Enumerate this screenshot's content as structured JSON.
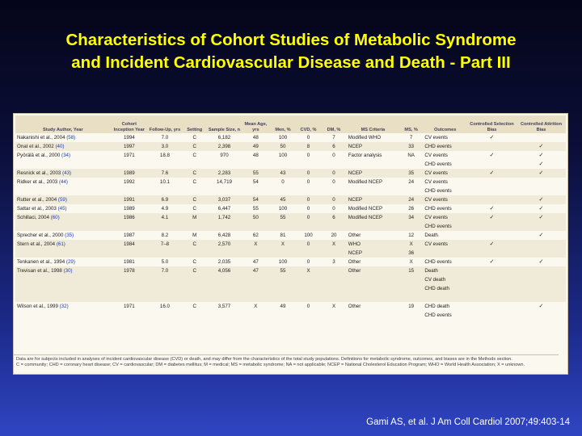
{
  "title_line1": "Characteristics of Cohort Studies of Metabolic Syndrome",
  "title_line2": "and Incident Cardiovascular Disease and Death - Part III",
  "headers": [
    "Study Author, Year",
    "Cohort Inception Year",
    "Follow-Up, yrs",
    "Setting",
    "Sample Size, n",
    "Mean Age, yrs",
    "Men, %",
    "CVD, %",
    "DM, %",
    "MS Criteria",
    "MS, %",
    "Outcomes",
    "Controlled Selection Bias",
    "Controlled Attrition Bias"
  ],
  "rows": [
    {
      "study": "Nakanishi et al., 2004",
      "ref": "(58)",
      "year": "1994",
      "fu": "7.0",
      "set": "C",
      "n": "6,182",
      "age": "48",
      "men": "100",
      "cvd": "0",
      "dm": "7",
      "crit": "Modified WHO",
      "ms": "7",
      "out": "CV events",
      "sel": "✓",
      "att": ""
    },
    {
      "study": "Onat et al., 2002",
      "ref": "(40)",
      "year": "1997",
      "fu": "3.0",
      "set": "C",
      "n": "2,398",
      "age": "49",
      "men": "50",
      "cvd": "8",
      "dm": "6",
      "crit": "NCEP",
      "ms": "33",
      "out": "CHD events",
      "sel": "",
      "att": "✓"
    },
    {
      "study": "Pyörälä et al., 2000",
      "ref": "(34)",
      "year": "1971",
      "fu": "18.8",
      "set": "C",
      "n": "970",
      "age": "48",
      "men": "100",
      "cvd": "0",
      "dm": "0",
      "crit": "Factor analysis",
      "ms": "NA",
      "out": "CV events",
      "sel": "✓",
      "att": "✓"
    },
    {
      "study": "",
      "ref": "",
      "year": "",
      "fu": "",
      "set": "",
      "n": "",
      "age": "",
      "men": "",
      "cvd": "",
      "dm": "",
      "crit": "",
      "ms": "",
      "out": "CHD events",
      "sel": "",
      "att": "✓"
    },
    {
      "study": "Resnick et al., 2003",
      "ref": "(43)",
      "year": "1989",
      "fu": "7.6",
      "set": "C",
      "n": "2,283",
      "age": "55",
      "men": "43",
      "cvd": "0",
      "dm": "0",
      "crit": "NCEP",
      "ms": "35",
      "out": "CV events",
      "sel": "✓",
      "att": "✓"
    },
    {
      "study": "Ridker et al., 2003",
      "ref": "(44)",
      "year": "1992",
      "fu": "10.1",
      "set": "C",
      "n": "14,719",
      "age": "54",
      "men": "0",
      "cvd": "0",
      "dm": "0",
      "crit": "Modified NCEP",
      "ms": "24",
      "out": "CV events",
      "sel": "",
      "att": ""
    },
    {
      "study": "",
      "ref": "",
      "year": "",
      "fu": "",
      "set": "",
      "n": "",
      "age": "",
      "men": "",
      "cvd": "",
      "dm": "",
      "crit": "",
      "ms": "",
      "out": "CHD events",
      "sel": "",
      "att": ""
    },
    {
      "study": "Rutter et al., 2004",
      "ref": "(59)",
      "year": "1991",
      "fu": "6.9",
      "set": "C",
      "n": "3,037",
      "age": "54",
      "men": "45",
      "cvd": "0",
      "dm": "0",
      "crit": "NCEP",
      "ms": "24",
      "out": "CV events",
      "sel": "",
      "att": "✓"
    },
    {
      "study": "Sattar et al., 2003",
      "ref": "(45)",
      "year": "1989",
      "fu": "4.9",
      "set": "C",
      "n": "6,447",
      "age": "55",
      "men": "100",
      "cvd": "0",
      "dm": "0",
      "crit": "Modified NCEP",
      "ms": "26",
      "out": "CHD events",
      "sel": "✓",
      "att": "✓"
    },
    {
      "study": "Schillaci, 2004",
      "ref": "(60)",
      "year": "1986",
      "fu": "4.1",
      "set": "M",
      "n": "1,742",
      "age": "50",
      "men": "55",
      "cvd": "0",
      "dm": "6",
      "crit": "Modified NCEP",
      "ms": "34",
      "out": "CV events",
      "sel": "✓",
      "att": "✓"
    },
    {
      "study": "",
      "ref": "",
      "year": "",
      "fu": "",
      "set": "",
      "n": "",
      "age": "",
      "men": "",
      "cvd": "",
      "dm": "",
      "crit": "",
      "ms": "",
      "out": "CHD events",
      "sel": "",
      "att": ""
    },
    {
      "study": "Sprecher et al., 2000",
      "ref": "(35)",
      "year": "1987",
      "fu": "8.2",
      "set": "M",
      "n": "6,428",
      "age": "62",
      "men": "81",
      "cvd": "100",
      "dm": "20",
      "crit": "Other",
      "ms": "12",
      "out": "Death",
      "sel": "",
      "att": "✓"
    },
    {
      "study": "Stern et al., 2004",
      "ref": "(61)",
      "year": "1984",
      "fu": "7–8",
      "set": "C",
      "n": "2,570",
      "age": "X",
      "men": "X",
      "cvd": "0",
      "dm": "X",
      "crit": "WHO",
      "ms": "X",
      "out": "CV events",
      "sel": "✓",
      "att": ""
    },
    {
      "study": "",
      "ref": "",
      "year": "",
      "fu": "",
      "set": "",
      "n": "",
      "age": "",
      "men": "",
      "cvd": "",
      "dm": "",
      "crit": "NCEP",
      "ms": "36",
      "out": "",
      "sel": "",
      "att": ""
    },
    {
      "study": "Tenkanen et al., 1994",
      "ref": "(29)",
      "year": "1981",
      "fu": "5.0",
      "set": "C",
      "n": "2,035",
      "age": "47",
      "men": "100",
      "cvd": "0",
      "dm": "3",
      "crit": "Other",
      "ms": "X",
      "out": "CHD events",
      "sel": "✓",
      "att": "✓"
    },
    {
      "study": "Trevisan et al., 1998",
      "ref": "(30)",
      "year": "1978",
      "fu": "7.0",
      "set": "C",
      "n": "4,056",
      "age": "47",
      "men": "55",
      "cvd": "X",
      "dm": "",
      "crit": "Other",
      "ms": "15",
      "out": "Death",
      "sel": "",
      "att": ""
    },
    {
      "study": "",
      "ref": "",
      "year": "",
      "fu": "",
      "set": "",
      "n": "",
      "age": "",
      "men": "",
      "cvd": "",
      "dm": "",
      "crit": "",
      "ms": "",
      "out": "CV death",
      "sel": "",
      "att": ""
    },
    {
      "study": "",
      "ref": "",
      "year": "",
      "fu": "",
      "set": "",
      "n": "",
      "age": "",
      "men": "",
      "cvd": "",
      "dm": "",
      "crit": "",
      "ms": "",
      "out": "CHD death",
      "sel": "",
      "att": ""
    },
    {
      "study": "",
      "ref": "",
      "year": "",
      "fu": "",
      "set": "",
      "n": "",
      "age": "",
      "men": "",
      "cvd": "",
      "dm": "",
      "crit": "",
      "ms": "",
      "out": "",
      "sel": "",
      "att": ""
    },
    {
      "study": "Wilson et al., 1999",
      "ref": "(32)",
      "year": "1971",
      "fu": "16.0",
      "set": "C",
      "n": "3,577",
      "age": "X",
      "men": "49",
      "cvd": "0",
      "dm": "X",
      "crit": "Other",
      "ms": "19",
      "out": "CHD death",
      "sel": "",
      "att": "✓"
    },
    {
      "study": "",
      "ref": "",
      "year": "",
      "fu": "",
      "set": "",
      "n": "",
      "age": "",
      "men": "",
      "cvd": "",
      "dm": "",
      "crit": "",
      "ms": "",
      "out": "CHD events",
      "sel": "",
      "att": ""
    }
  ],
  "footnote1": "Data are for subjects included in analyses of incident cardiovascular disease (CVD) or death, and may differ from the characteristics of the total study populations. Definitions for metabolic syndrome, outcomes, and biases are in the Methods section.",
  "footnote2": "C = community; CHD = coronary heart disease; CV = cardiovascular; DM = diabetes mellitus; M = medical; MS = metabolic syndrome; NA = not applicable; NCEP = National Cholesterol Education Program; WHO = World Health Association; X = unknown.",
  "citation": "Gami AS, et al. J Am Coll Cardiol 2007;49:403-14"
}
